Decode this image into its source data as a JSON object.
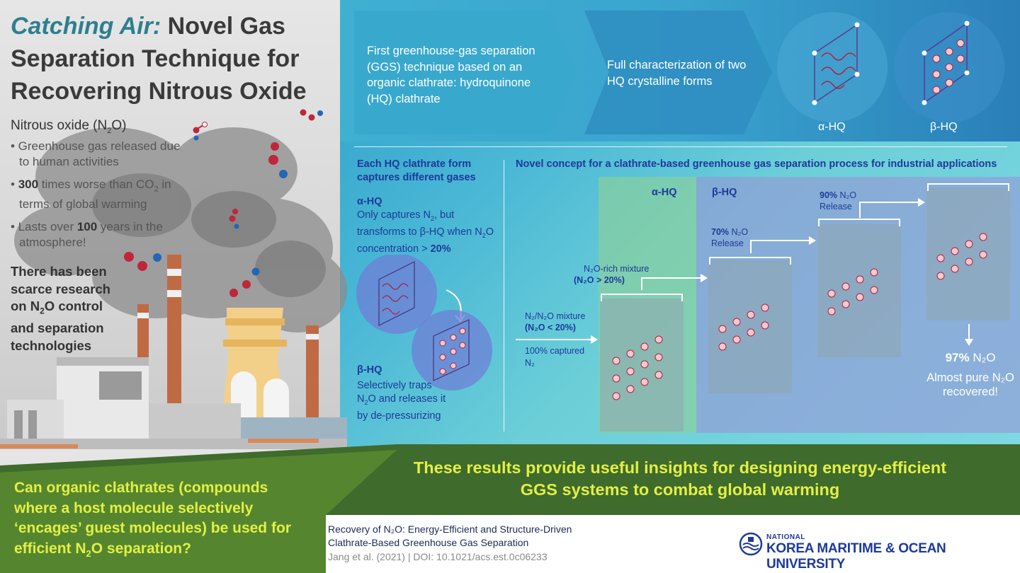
{
  "header": {
    "title_italic": "Catching Air:",
    "title_rest": "Novel Gas Separation Technique for Recovering Nitrous Oxide"
  },
  "n2o": {
    "heading_pre": "Nitrous oxide (N",
    "heading_sub": "2",
    "heading_post": "O)",
    "bullet1": "• Greenhouse gas released due to human activities",
    "bullet2_bold": "300",
    "bullet2_pre": " times worse than CO",
    "bullet2_sub": "2",
    "bullet2_post": " in terms of global warming",
    "bullet3_pre": "• Lasts over ",
    "bullet3_bold": "100",
    "bullet3_post": " years in the atmosphere!",
    "scarce_pre": "There has been scarce research on N",
    "scarce_sub": "2",
    "scarce_post": "O control and separation technologies"
  },
  "top": {
    "step1": "First greenhouse-gas separation (GGS) technique based on an organic clathrate: hydroquinone (HQ) clathrate",
    "step2": "Full characterization of two HQ crystalline forms",
    "alpha": "α-HQ",
    "beta": "β-HQ"
  },
  "forms": {
    "heading": "Each HQ clathrate form captures different gases",
    "alpha_label": "α-HQ",
    "alpha_desc_1": "Only captures N",
    "alpha_desc_1_sub": "2",
    "alpha_desc_1_post": ", but transforms to β-HQ when N",
    "alpha_desc_2_sub": "2",
    "alpha_desc_2_post": "O concentration > ",
    "alpha_desc_pct": "20%",
    "beta_label": "β-HQ",
    "beta_desc_pre": "Selectively traps N",
    "beta_desc_sub": "2",
    "beta_desc_post": "O and releases it by de-pressurizing"
  },
  "process": {
    "heading": "Novel concept for a clathrate-based greenhouse gas separation process for industrial applications",
    "alpha": "α-HQ",
    "beta": "β-HQ",
    "mix_in": "N₂/N₂O mixture",
    "mix_in_cond": "(N₂O < 20%)",
    "captured": "100% captured",
    "captured_n2": "N₂",
    "rich": "N₂O-rich mixture",
    "rich_cond": "(N₂O > 20%)",
    "rel70_pct": "70%",
    "rel70": " N₂O",
    "rel70_label": "Release",
    "rel90_pct": "90%",
    "rel90": " N₂O",
    "rel90_label": "Release",
    "final_pct": "97%",
    "final_n2o": " N₂O",
    "final_note": "Almost pure N₂O recovered!"
  },
  "bottom": {
    "results": "These results provide useful insights for designing energy-efficient GGS systems to combat global warming",
    "question_pre": "Can organic clathrates (compounds where a host molecule selectively ‘encages’ guest molecules) be used for efficient N",
    "question_sub": "2",
    "question_post": "O separation?",
    "ref_line1": "Recovery of N₂O: Energy-Efficient and Structure-Driven",
    "ref_line2": "Clathrate-Based Greenhouse Gas Separation",
    "doi": "Jang et al. (2021)  |  DOI: 10.1021/acs.est.0c06233",
    "uni_top": "NATIONAL",
    "uni_name": "KOREA MARITIME & OCEAN UNIVERSITY"
  },
  "colors": {
    "accent_blue": "#1d3a9a",
    "highlight_yellow": "#e3ef45",
    "green": "#3e6b2b",
    "molecule_red": "#c0263a"
  }
}
